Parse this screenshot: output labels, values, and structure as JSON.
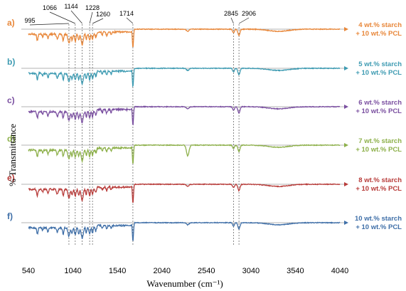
{
  "chart_data": {
    "type": "line",
    "title": "",
    "xlabel": "Wavenumber (cm⁻¹)",
    "ylabel": "% Transmittance",
    "xlim": [
      540,
      4040
    ],
    "x_ticks": [
      "540",
      "1040",
      "1540",
      "2040",
      "2540",
      "3040",
      "3540",
      "4040"
    ],
    "peak_markers": [
      {
        "label": "995",
        "x": 995
      },
      {
        "label": "1066",
        "x": 1066
      },
      {
        "label": "1144",
        "x": 1144
      },
      {
        "label": "1228",
        "x": 1228
      },
      {
        "label": "1260",
        "x": 1260
      },
      {
        "label": "1714",
        "x": 1714
      },
      {
        "label": "2845",
        "x": 2845
      },
      {
        "label": "2906",
        "x": 2906
      }
    ],
    "series": [
      {
        "panel": "a)",
        "line1": "4 wt.% starch",
        "line2": "+ 10 wt.% PCL",
        "color": "#E8873A"
      },
      {
        "panel": "b)",
        "line1": "5 wt.% starch",
        "line2": "+ 10 wt.% PCL",
        "color": "#3E9BB2"
      },
      {
        "panel": "c)",
        "line1": "6 wt.% starch",
        "line2": "+ 10 wt.% PCL",
        "color": "#7A4FA0"
      },
      {
        "panel": "d)",
        "line1": "7 wt.% starch",
        "line2": "+ 10 wt.% PCL",
        "color": "#8DB04A"
      },
      {
        "panel": "e)",
        "line1": "8 wt.% starch",
        "line2": "+ 10 wt.% PCL",
        "color": "#B83C3A"
      },
      {
        "panel": "f)",
        "line1": "10 wt.% starch",
        "line2": "+ 10 wt.% PCL",
        "color": "#3F6FA8"
      }
    ]
  }
}
